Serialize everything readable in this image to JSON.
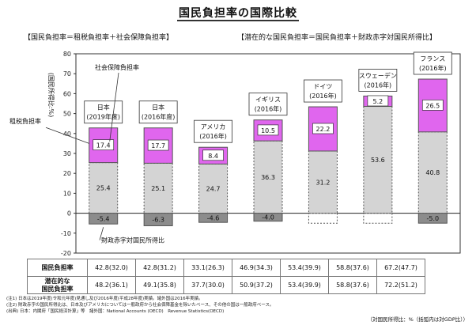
{
  "title": "国民負担率の国際比較",
  "header_left": "【国民負担率＝租税負担率＋社会保障負担率】",
  "header_right": "【潜在的な国民負担率＝国民負担率＋財政赤字対国民所得比】",
  "colors": {
    "tax": "#e066ee",
    "social": "#d4d4d4",
    "deficit": "#8c8c8c",
    "line": "#555555"
  },
  "chart_data": {
    "type": "bar",
    "ylabel": "(国民所得比:%)",
    "ylim": [
      -20,
      80
    ],
    "yticks": [
      -20,
      -10,
      0,
      10,
      20,
      30,
      40,
      50,
      60,
      70,
      80
    ],
    "categories": [
      {
        "name": "日本",
        "sub": "(2019年度)"
      },
      {
        "name": "日本",
        "sub": "(2016年度)"
      },
      {
        "name": "アメリカ",
        "sub": "(2016年)"
      },
      {
        "name": "イギリス",
        "sub": "(2016年)"
      },
      {
        "name": "ドイツ",
        "sub": "(2016年)"
      },
      {
        "name": "スウェーデン",
        "sub": "(2016年)"
      },
      {
        "name": "フランス",
        "sub": "(2016年)"
      }
    ],
    "series": [
      {
        "name": "租税負担率",
        "values": [
          25.4,
          25.1,
          24.7,
          36.3,
          31.2,
          53.6,
          40.8
        ]
      },
      {
        "name": "社会保障負担率",
        "values": [
          17.4,
          17.7,
          8.4,
          10.5,
          22.2,
          5.2,
          26.5
        ]
      },
      {
        "name": "財政赤字対国民所得比",
        "values": [
          -5.4,
          -6.3,
          -4.6,
          -4.0,
          null,
          null,
          -5.0
        ]
      }
    ],
    "annotations": [
      "社会保障負担率",
      "租税負担率",
      "財政赤字対国民所得比"
    ]
  },
  "table": {
    "rows": [
      {
        "label": [
          "国民負担率"
        ],
        "values": [
          "42.8(32.0)",
          "42.8(31.2)",
          "33.1(26.3)",
          "46.9(34.3)",
          "53.4(39.9)",
          "58.8(37.6)",
          "67.2(47.7)"
        ]
      },
      {
        "label": [
          "潜在的な",
          "国民負担率"
        ],
        "values": [
          "48.2(36.1)",
          "49.1(35.8)",
          "37.7(30.0)",
          "50.9(37.2)",
          "53.4(39.9)",
          "58.8(37.6)",
          "72.2(51.2)"
        ]
      }
    ]
  },
  "axis_note": "（対国民所得比：%（括弧内は対GDP比））",
  "notes": [
    "(注1) 日本は2019年度(令和元年度)見通し及び2016年度(平成28年度)実績。諸外国は2016年実績。",
    "(注2) 財政赤字の国民所得比は、日本及びアメリカについては一般政府から社会保障基金を除いたベース、その他の国は一般政府ベース。",
    "(出典) 日本：内閣府「国民経済計算」等　諸外国：National Accounts (OECD)　Revenue Statistics(OECD)"
  ]
}
